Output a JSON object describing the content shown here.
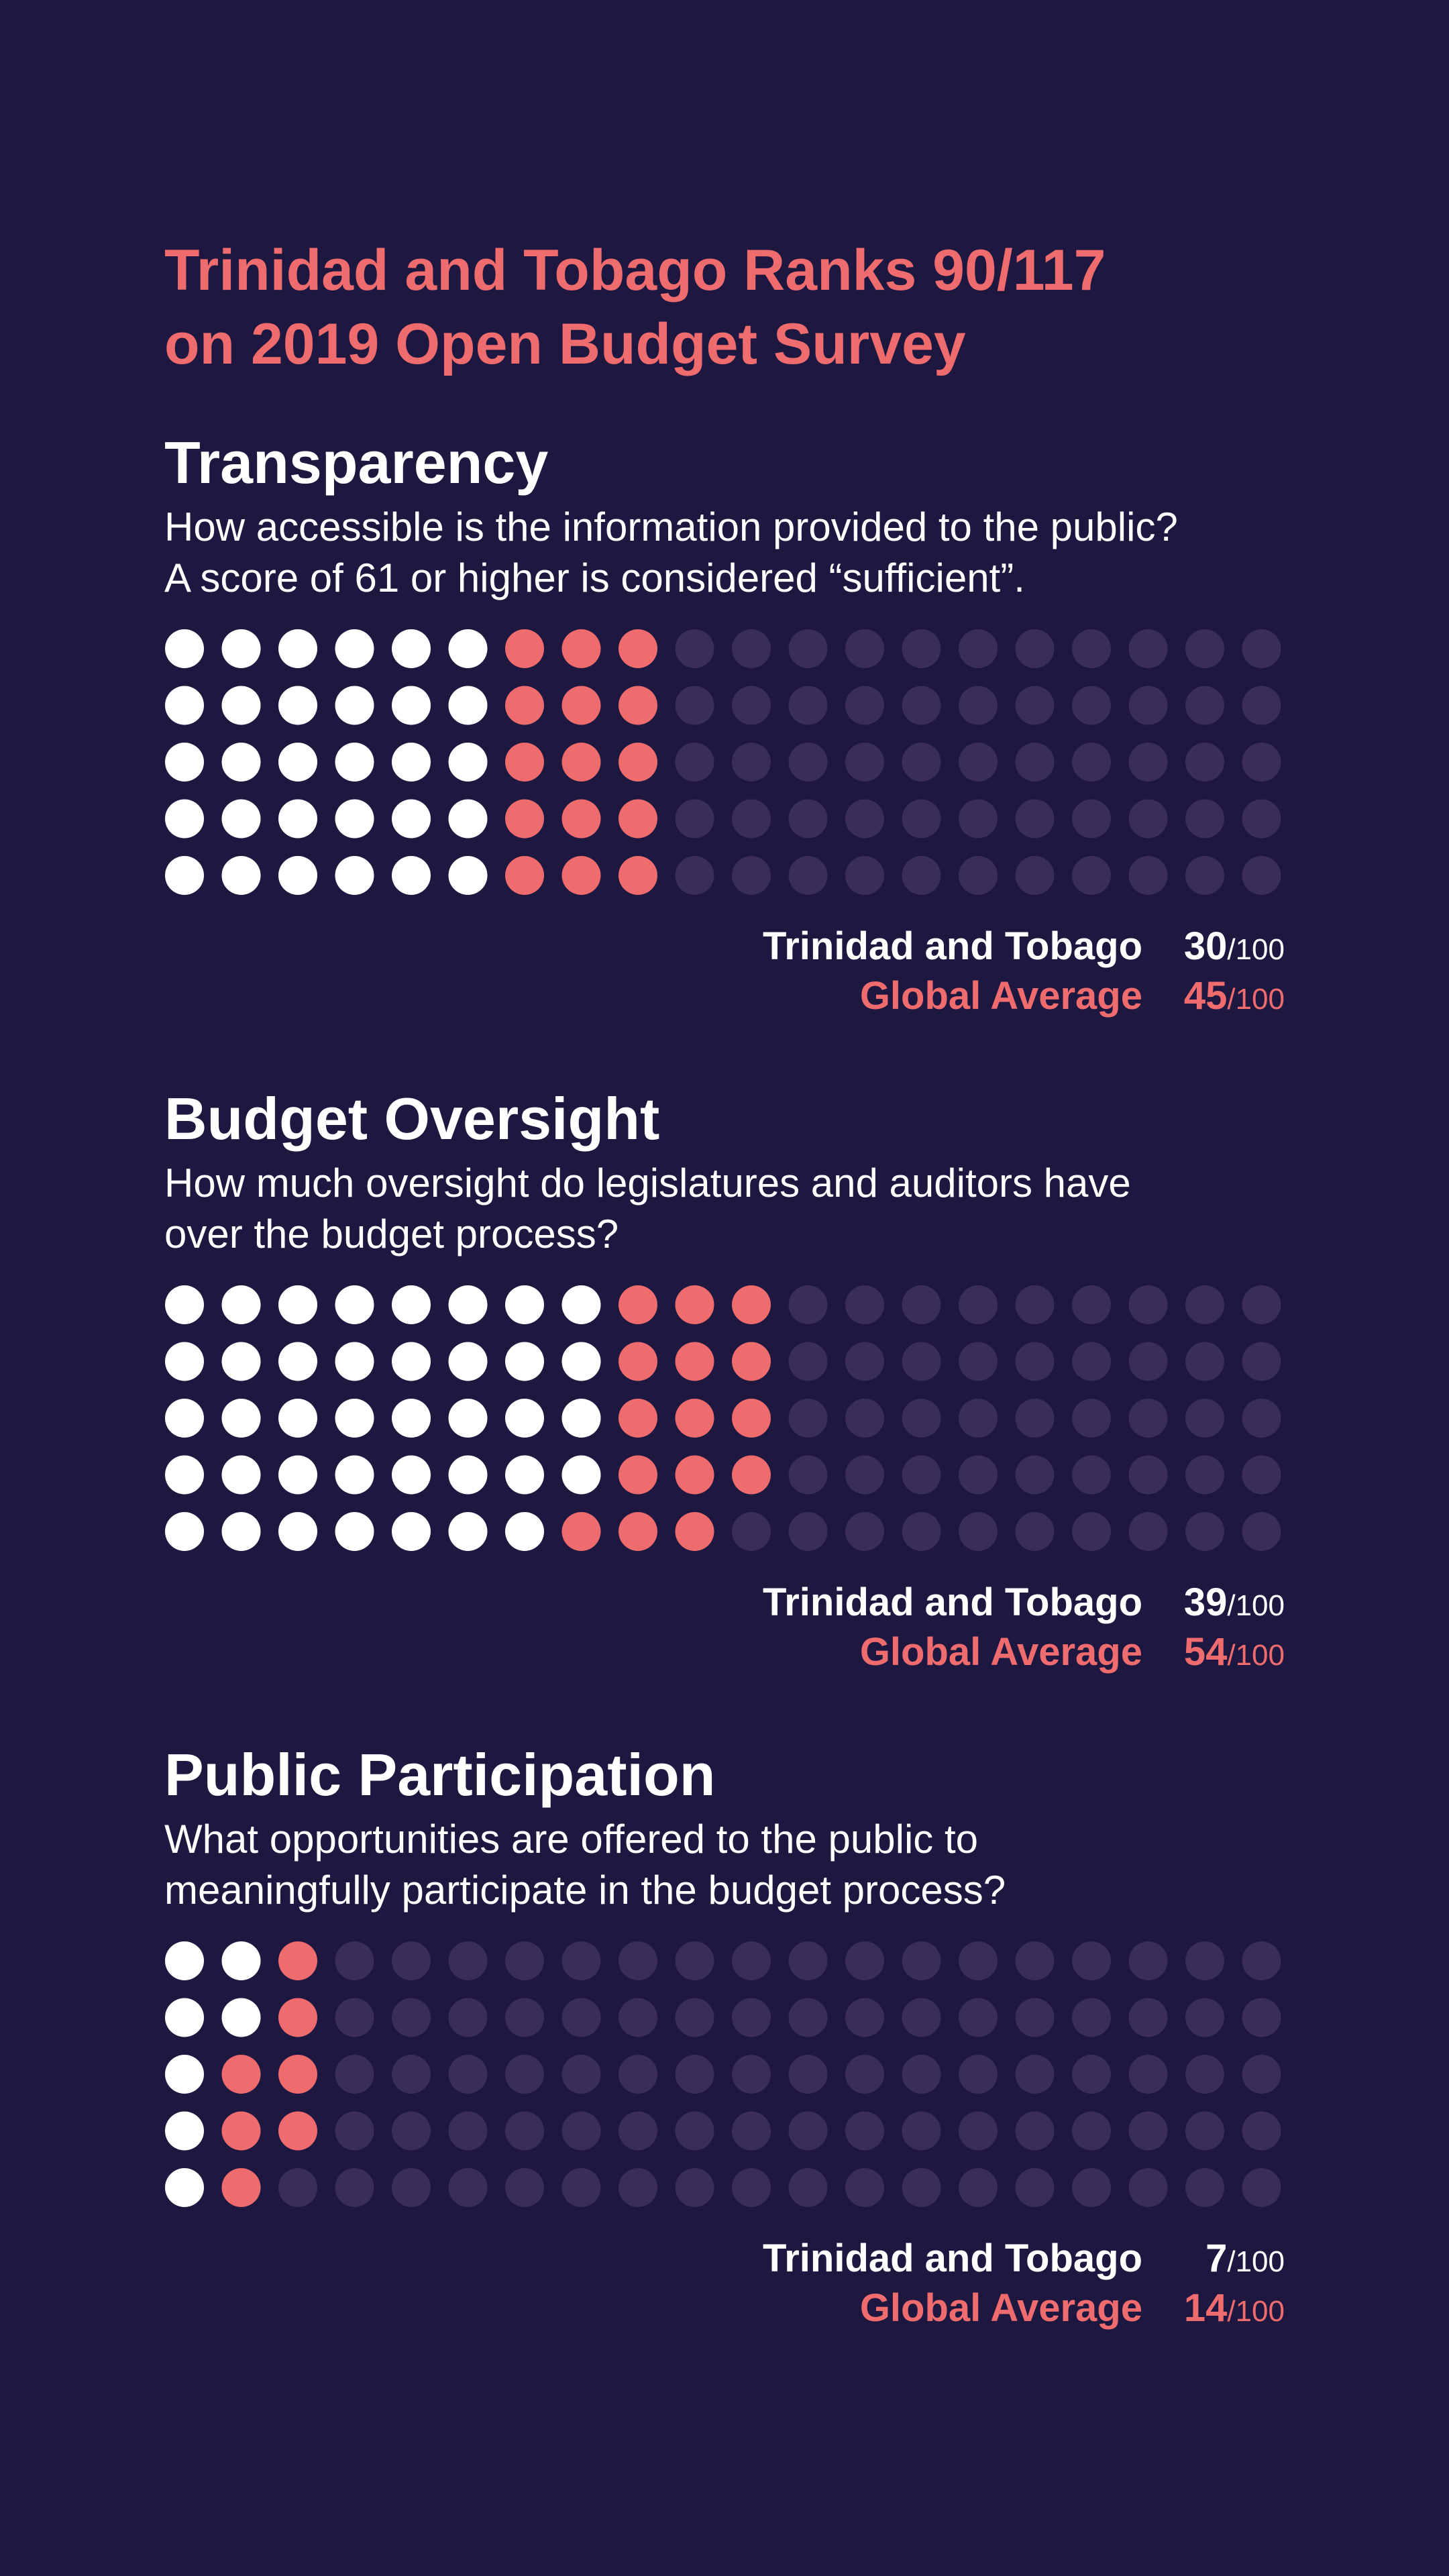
{
  "title_line1": "Trinidad and Tobago Ranks 90/117",
  "title_line2": "on 2019 Open Budget Survey",
  "colors": {
    "background": "#1e1740",
    "country_dot": "#ffffff",
    "global_dot": "#ee6b6e",
    "empty_dot": "#3a2d5c",
    "accent": "#ee6b6e"
  },
  "sections": [
    {
      "title": "Transparency",
      "description_line1": "How accessible is the information provided to the public?",
      "description_line2": "A score of 61 or higher is considered “sufficient”.",
      "country_label": "Trinidad and Tobago",
      "global_label": "Global Average",
      "country_value": "30",
      "global_value": "45",
      "denominator": "/100"
    },
    {
      "title": "Budget Oversight",
      "description_line1": "How much oversight do legislatures and auditors have",
      "description_line2": "over the budget process?",
      "country_label": "Trinidad and Tobago",
      "global_label": "Global Average",
      "country_value": "39",
      "global_value": "54",
      "denominator": "/100"
    },
    {
      "title": "Public Participation",
      "description_line1": "What opportunities are offered to the public to",
      "description_line2": "meaningfully participate in the budget process?",
      "country_label": "Trinidad and Tobago",
      "global_label": "Global Average",
      "country_value": "7",
      "global_value": "14",
      "denominator": "/100"
    }
  ],
  "chart_data": [
    {
      "type": "waffle",
      "title": "Transparency",
      "total": 100,
      "rows": 5,
      "columns": 20,
      "fill_order": "column-major",
      "series": [
        {
          "name": "Trinidad and Tobago",
          "value": 30
        },
        {
          "name": "Global Average",
          "value": 45
        }
      ]
    },
    {
      "type": "waffle",
      "title": "Budget Oversight",
      "total": 100,
      "rows": 5,
      "columns": 20,
      "fill_order": "column-major",
      "series": [
        {
          "name": "Trinidad and Tobago",
          "value": 39
        },
        {
          "name": "Global Average",
          "value": 54
        }
      ]
    },
    {
      "type": "waffle",
      "title": "Public Participation",
      "total": 100,
      "rows": 5,
      "columns": 20,
      "fill_order": "column-major",
      "series": [
        {
          "name": "Trinidad and Tobago",
          "value": 7
        },
        {
          "name": "Global Average",
          "value": 14
        }
      ]
    }
  ]
}
